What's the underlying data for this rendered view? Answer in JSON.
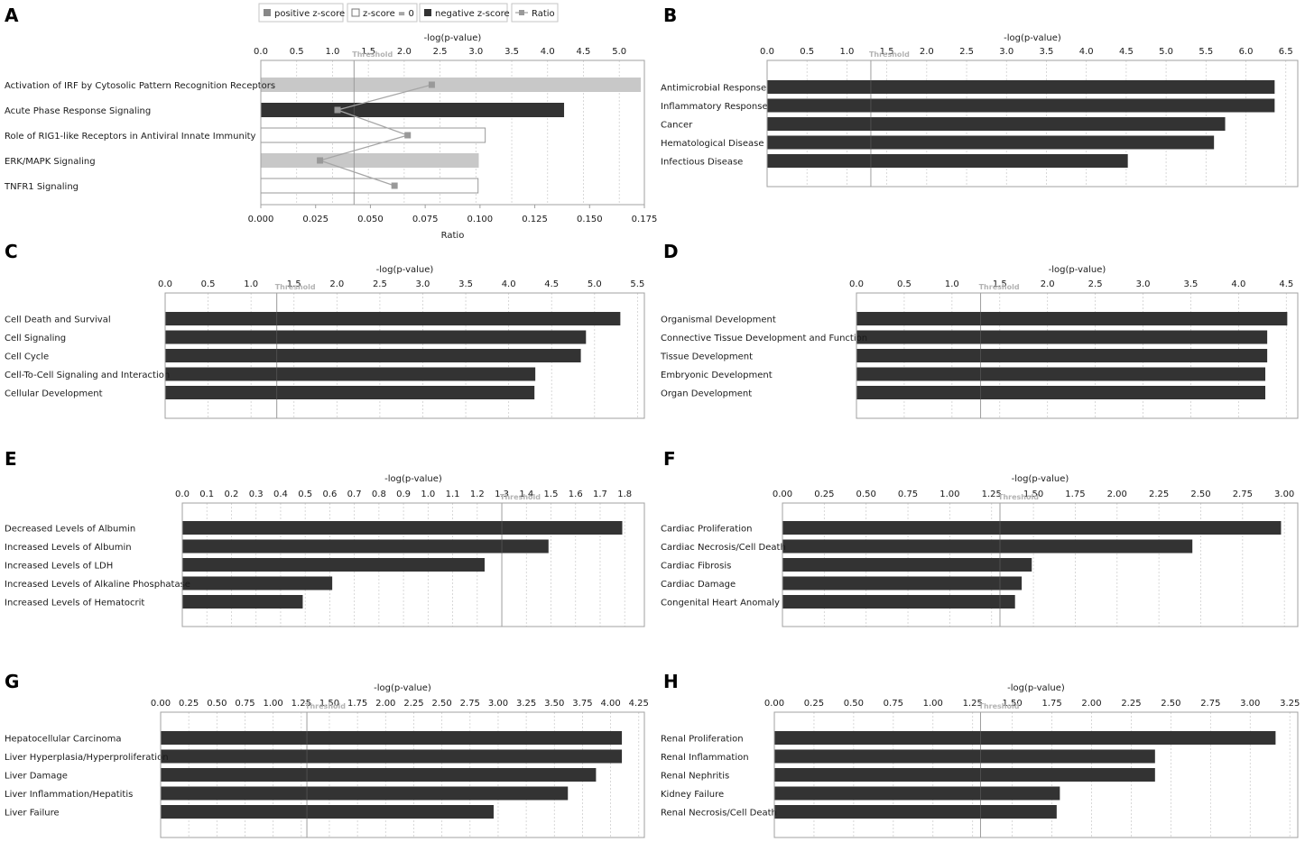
{
  "colors": {
    "bar_negative": "#333333",
    "bar_positive": "#c8c8c8",
    "bar_zero_fill": "#ffffff",
    "bar_zero_stroke": "#999999",
    "ratio_line": "#a6a6a6",
    "ratio_marker": "#999999",
    "plot_border": "#a0a0a0",
    "grid": "#cfcfcf",
    "threshold_text": "#b3b3b3",
    "text": "#1a1a1a"
  },
  "legend": {
    "positive": "positive z-score",
    "zero": "z-score = 0",
    "negative": "negative z-score",
    "ratio": "Ratio"
  },
  "threshold_label": "Threshold",
  "chart_data": [
    {
      "panel": "A",
      "type": "bar",
      "orientation": "horizontal",
      "xlabel": "-log(p-value)",
      "xlim": [
        0,
        5.35
      ],
      "ticks": [
        "0.0",
        "0.5",
        "1.0",
        "1.5",
        "2.0",
        "2.5",
        "3.0",
        "3.5",
        "4.0",
        "4.5",
        "5.0"
      ],
      "threshold": 1.3,
      "categories": [
        "Activation of IRF by Cytosolic Pattern Recognition Receptors",
        "Acute Phase Response Signaling",
        "Role of RIG1-like Receptors in Antiviral Innate Immunity",
        "ERK/MAPK Signaling",
        "TNFR1 Signaling"
      ],
      "values": [
        5.3,
        4.23,
        3.13,
        3.04,
        3.03
      ],
      "zscore": [
        "positive",
        "negative",
        "zero",
        "positive",
        "zero"
      ],
      "ratio": {
        "label": "Ratio",
        "xlim": [
          0,
          0.175
        ],
        "ticks": [
          "0.000",
          "0.025",
          "0.050",
          "0.075",
          "0.100",
          "0.125",
          "0.150",
          "0.175"
        ],
        "values": [
          0.078,
          0.035,
          0.067,
          0.027,
          0.061
        ]
      }
    },
    {
      "panel": "B",
      "type": "bar",
      "orientation": "horizontal",
      "xlabel": "-log(p-value)",
      "xlim": [
        0,
        6.65
      ],
      "ticks": [
        "0.0",
        "0.5",
        "1.0",
        "1.5",
        "2.0",
        "2.5",
        "3.0",
        "3.5",
        "4.0",
        "4.5",
        "5.0",
        "5.5",
        "6.0",
        "6.5"
      ],
      "threshold": 1.3,
      "categories": [
        "Antimicrobial Response",
        "Inflammatory Response",
        "Cancer",
        "Hematological Disease",
        "Infectious Disease"
      ],
      "values": [
        6.36,
        6.36,
        5.74,
        5.6,
        4.52
      ]
    },
    {
      "panel": "C",
      "type": "bar",
      "orientation": "horizontal",
      "xlabel": "-log(p-value)",
      "xlim": [
        0,
        5.58
      ],
      "ticks": [
        "0.0",
        "0.5",
        "1.0",
        "1.5",
        "2.0",
        "2.5",
        "3.0",
        "3.5",
        "4.0",
        "4.5",
        "5.0",
        "5.5"
      ],
      "threshold": 1.3,
      "categories": [
        "Cell Death and Survival",
        "Cell Signaling",
        "Cell Cycle",
        "Cell-To-Cell Signaling and Interaction",
        "Cellular Development"
      ],
      "values": [
        5.3,
        4.9,
        4.84,
        4.31,
        4.3
      ]
    },
    {
      "panel": "D",
      "type": "bar",
      "orientation": "horizontal",
      "xlabel": "-log(p-value)",
      "xlim": [
        0,
        4.62
      ],
      "ticks": [
        "0.0",
        "0.5",
        "1.0",
        "1.5",
        "2.0",
        "2.5",
        "3.0",
        "3.5",
        "4.0",
        "4.5"
      ],
      "threshold": 1.3,
      "categories": [
        "Organismal Development",
        "Connective Tissue Development and Function",
        "Tissue Development",
        "Embryonic Development",
        "Organ Development"
      ],
      "values": [
        4.51,
        4.3,
        4.3,
        4.28,
        4.28
      ]
    },
    {
      "panel": "E",
      "type": "bar",
      "orientation": "horizontal",
      "xlabel": "-log(p-value)",
      "xlim": [
        0,
        1.88
      ],
      "ticks": [
        "0.0",
        "0.1",
        "0.2",
        "0.3",
        "0.4",
        "0.5",
        "0.6",
        "0.7",
        "0.8",
        "0.9",
        "1.0",
        "1.1",
        "1.2",
        "1.3",
        "1.4",
        "1.5",
        "1.6",
        "1.7",
        "1.8"
      ],
      "threshold": 1.3,
      "categories": [
        "Decreased Levels of Albumin",
        "Increased Levels of Albumin",
        "Increased Levels of LDH",
        "Increased Levels of Alkaline Phosphatase",
        "Increased Levels of Hematocrit"
      ],
      "values": [
        1.79,
        1.49,
        1.23,
        0.61,
        0.49
      ]
    },
    {
      "panel": "F",
      "type": "bar",
      "orientation": "horizontal",
      "xlabel": "-log(p-value)",
      "xlim": [
        0,
        3.08
      ],
      "ticks": [
        "0.00",
        "0.25",
        "0.50",
        "0.75",
        "1.00",
        "1.25",
        "1.50",
        "1.75",
        "2.00",
        "2.25",
        "2.50",
        "2.75",
        "3.00"
      ],
      "threshold": 1.3,
      "categories": [
        "Cardiac Proliferation",
        "Cardiac Necrosis/Cell Death",
        "Cardiac Fibrosis",
        "Cardiac Damage",
        "Congenital Heart Anomaly"
      ],
      "values": [
        2.98,
        2.45,
        1.49,
        1.43,
        1.39
      ]
    },
    {
      "panel": "G",
      "type": "bar",
      "orientation": "horizontal",
      "xlabel": "-log(p-value)",
      "xlim": [
        0,
        4.3
      ],
      "ticks": [
        "0.00",
        "0.25",
        "0.50",
        "0.75",
        "1.00",
        "1.25",
        "1.50",
        "1.75",
        "2.00",
        "2.25",
        "2.50",
        "2.75",
        "3.00",
        "3.25",
        "3.50",
        "3.75",
        "4.00",
        "4.25"
      ],
      "threshold": 1.3,
      "categories": [
        "Hepatocellular Carcinoma",
        "Liver Hyperplasia/Hyperproliferation",
        "Liver Damage",
        "Liver Inflammation/Hepatitis",
        "Liver Failure"
      ],
      "values": [
        4.1,
        4.1,
        3.87,
        3.62,
        2.96
      ]
    },
    {
      "panel": "H",
      "type": "bar",
      "orientation": "horizontal",
      "xlabel": "-log(p-value)",
      "xlim": [
        0,
        3.3
      ],
      "ticks": [
        "0.00",
        "0.25",
        "0.50",
        "0.75",
        "1.00",
        "1.25",
        "1.50",
        "1.75",
        "2.00",
        "2.25",
        "2.50",
        "2.75",
        "3.00",
        "3.25"
      ],
      "threshold": 1.3,
      "categories": [
        "Renal Proliferation",
        "Renal Inflammation",
        "Renal Nephritis",
        "Kidney Failure",
        "Renal Necrosis/Cell Death"
      ],
      "values": [
        3.16,
        2.4,
        2.4,
        1.8,
        1.78
      ]
    }
  ]
}
